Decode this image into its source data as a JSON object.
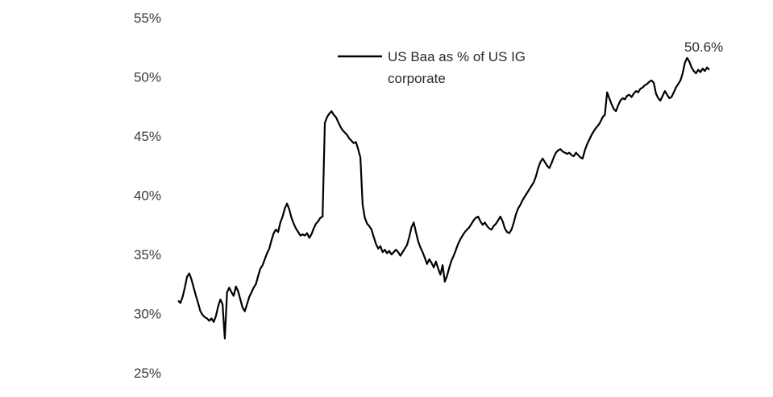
{
  "chart_data": {
    "type": "line",
    "title": "",
    "xlabel": "",
    "ylabel": "",
    "ylim": [
      0.25,
      0.55
    ],
    "y_ticks": [
      "55%",
      "50%",
      "45%",
      "40%",
      "35%",
      "30%",
      "25%"
    ],
    "y_tick_values": [
      0.55,
      0.5,
      0.45,
      0.4,
      0.35,
      0.3,
      0.25
    ],
    "grid": false,
    "legend_position": "top-center",
    "line_color": "#000000",
    "series": [
      {
        "name": "US Baa as % of US IG corporate",
        "values": [
          0.311,
          0.309,
          0.314,
          0.322,
          0.331,
          0.334,
          0.329,
          0.322,
          0.315,
          0.309,
          0.302,
          0.299,
          0.297,
          0.296,
          0.294,
          0.296,
          0.293,
          0.298,
          0.306,
          0.312,
          0.308,
          0.279,
          0.318,
          0.322,
          0.318,
          0.315,
          0.323,
          0.319,
          0.312,
          0.305,
          0.302,
          0.308,
          0.314,
          0.318,
          0.322,
          0.325,
          0.332,
          0.338,
          0.341,
          0.346,
          0.351,
          0.355,
          0.362,
          0.368,
          0.371,
          0.369,
          0.377,
          0.382,
          0.389,
          0.393,
          0.388,
          0.381,
          0.376,
          0.372,
          0.369,
          0.366,
          0.367,
          0.366,
          0.368,
          0.364,
          0.367,
          0.372,
          0.376,
          0.378,
          0.381,
          0.382,
          0.461,
          0.466,
          0.469,
          0.471,
          0.468,
          0.466,
          0.462,
          0.458,
          0.455,
          0.453,
          0.451,
          0.448,
          0.446,
          0.444,
          0.445,
          0.439,
          0.432,
          0.392,
          0.381,
          0.376,
          0.374,
          0.371,
          0.365,
          0.359,
          0.355,
          0.357,
          0.352,
          0.354,
          0.351,
          0.353,
          0.35,
          0.352,
          0.354,
          0.352,
          0.349,
          0.352,
          0.355,
          0.358,
          0.365,
          0.373,
          0.377,
          0.369,
          0.361,
          0.356,
          0.352,
          0.347,
          0.342,
          0.346,
          0.343,
          0.339,
          0.344,
          0.338,
          0.333,
          0.341,
          0.327,
          0.332,
          0.339,
          0.345,
          0.349,
          0.354,
          0.359,
          0.363,
          0.366,
          0.369,
          0.371,
          0.373,
          0.376,
          0.379,
          0.381,
          0.382,
          0.378,
          0.375,
          0.377,
          0.374,
          0.372,
          0.371,
          0.374,
          0.376,
          0.379,
          0.382,
          0.378,
          0.372,
          0.369,
          0.368,
          0.371,
          0.377,
          0.384,
          0.389,
          0.392,
          0.396,
          0.399,
          0.402,
          0.405,
          0.408,
          0.411,
          0.416,
          0.423,
          0.428,
          0.431,
          0.428,
          0.425,
          0.423,
          0.427,
          0.432,
          0.436,
          0.438,
          0.439,
          0.437,
          0.436,
          0.435,
          0.436,
          0.434,
          0.433,
          0.436,
          0.434,
          0.432,
          0.431,
          0.438,
          0.443,
          0.447,
          0.451,
          0.454,
          0.457,
          0.459,
          0.462,
          0.466,
          0.468,
          0.487,
          0.482,
          0.477,
          0.473,
          0.471,
          0.476,
          0.48,
          0.482,
          0.481,
          0.484,
          0.485,
          0.483,
          0.486,
          0.488,
          0.487,
          0.49,
          0.491,
          0.493,
          0.494,
          0.496,
          0.497,
          0.495,
          0.486,
          0.482,
          0.48,
          0.484,
          0.488,
          0.485,
          0.482,
          0.483,
          0.487,
          0.491,
          0.494,
          0.497,
          0.503,
          0.512,
          0.516,
          0.513,
          0.508,
          0.505,
          0.503,
          0.506,
          0.504,
          0.507,
          0.505,
          0.508,
          0.506
        ]
      }
    ],
    "annotations": [
      {
        "text": "50.6%",
        "at": "last-point"
      }
    ]
  }
}
